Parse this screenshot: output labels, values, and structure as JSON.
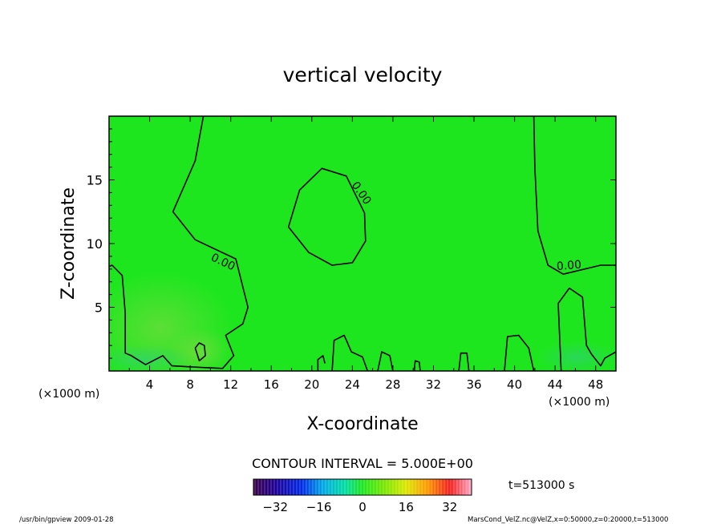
{
  "chart_data": {
    "type": "contour",
    "title": "vertical velocity",
    "xlabel": "X-coordinate",
    "ylabel": "Z-coordinate",
    "x_unit": "(×1000 m)",
    "y_unit": "(×1000 m)",
    "xlim": [
      0,
      50
    ],
    "ylim": [
      0,
      20
    ],
    "x_ticks": [
      4,
      8,
      12,
      16,
      20,
      24,
      28,
      32,
      36,
      40,
      44,
      48
    ],
    "y_ticks": [
      5,
      10,
      15
    ],
    "contour_interval_text": "CONTOUR INTERVAL = 5.000E+00",
    "contour_label": "0.00",
    "time_label": "t=513000 s",
    "colorbar": {
      "min": -40,
      "max": 40,
      "tick_values": [
        -32,
        -16,
        0,
        16,
        32
      ],
      "tick_labels": [
        "−32",
        "−16",
        "0",
        "16",
        "32"
      ]
    },
    "colors": {
      "field": "#1ee61e",
      "field_light": "#62d93c",
      "contour": "#000000"
    },
    "contours": [
      {
        "name": "left-contour",
        "points": [
          [
            9.3,
            20
          ],
          [
            8.5,
            16.5
          ],
          [
            6.3,
            12.5
          ],
          [
            8.5,
            10.3
          ],
          [
            12.5,
            8.8
          ],
          [
            13.7,
            5
          ],
          [
            13.2,
            3.7
          ],
          [
            11.5,
            2.8
          ],
          [
            12.3,
            1.2
          ],
          [
            11.2,
            0.2
          ],
          [
            8.5,
            0.3
          ],
          [
            6.2,
            0.4
          ],
          [
            5.3,
            1.2
          ],
          [
            3.6,
            0.5
          ],
          [
            2.2,
            1.2
          ],
          [
            1.6,
            1.4
          ],
          [
            1.6,
            4.5
          ],
          [
            1.3,
            7.5
          ],
          [
            0.3,
            8.3
          ],
          [
            0,
            8.2
          ]
        ]
      },
      {
        "name": "center-contour",
        "points": [
          [
            17.7,
            11.3
          ],
          [
            18.8,
            14.2
          ],
          [
            21,
            15.9
          ],
          [
            23.4,
            15.3
          ],
          [
            25.2,
            12.4
          ],
          [
            25.3,
            10.2
          ],
          [
            24.0,
            8.5
          ],
          [
            22,
            8.3
          ],
          [
            19.7,
            9.3
          ],
          [
            17.7,
            11.3
          ]
        ]
      },
      {
        "name": "right-contour",
        "points": [
          [
            41.9,
            20
          ],
          [
            42,
            16
          ],
          [
            42.3,
            11
          ],
          [
            43.3,
            8.3
          ],
          [
            44.8,
            7.6
          ],
          [
            48.5,
            8.3
          ],
          [
            50,
            8.3
          ]
        ]
      },
      {
        "name": "small-center-contour",
        "points": [
          [
            8.5,
            1.8
          ],
          [
            8.9,
            2.2
          ],
          [
            9.4,
            2.0
          ],
          [
            9.5,
            1.2
          ],
          [
            8.9,
            0.8
          ],
          [
            8.5,
            1.8
          ]
        ]
      },
      {
        "name": "bottom-bump-1",
        "points": [
          [
            22,
            0
          ],
          [
            22.2,
            2.4
          ],
          [
            23.2,
            2.8
          ],
          [
            23.9,
            1.5
          ],
          [
            25,
            1.1
          ],
          [
            25.5,
            0
          ]
        ]
      },
      {
        "name": "bottom-bump-2",
        "points": [
          [
            26.5,
            0
          ],
          [
            26.9,
            1.5
          ],
          [
            27.7,
            1.2
          ],
          [
            28,
            0
          ]
        ]
      },
      {
        "name": "bottom-bump-3",
        "points": [
          [
            39,
            0
          ],
          [
            39.3,
            2.7
          ],
          [
            40.4,
            2.8
          ],
          [
            41.4,
            1.8
          ],
          [
            41.9,
            0
          ]
        ]
      },
      {
        "name": "right-bump",
        "points": [
          [
            44.6,
            0
          ],
          [
            44.3,
            5.3
          ],
          [
            45.4,
            6.5
          ],
          [
            46.7,
            5.8
          ],
          [
            47.1,
            2
          ],
          [
            47.6,
            1.3
          ],
          [
            48.5,
            0.4
          ],
          [
            48.9,
            1.0
          ],
          [
            50,
            1.5
          ]
        ]
      },
      {
        "name": "bottom-bump-4",
        "points": [
          [
            30.1,
            0
          ],
          [
            30.2,
            0.8
          ],
          [
            30.6,
            0.7
          ],
          [
            30.7,
            0
          ]
        ]
      },
      {
        "name": "bottom-bump-5",
        "points": [
          [
            34.5,
            0
          ],
          [
            34.7,
            1.4
          ],
          [
            35.3,
            1.4
          ],
          [
            35.5,
            0
          ]
        ]
      },
      {
        "name": "bottom-bump-6",
        "points": [
          [
            20.6,
            0
          ],
          [
            20.6,
            0.9
          ],
          [
            21.1,
            1.2
          ],
          [
            21.3,
            0.6
          ]
        ]
      }
    ],
    "contour_labels_at": [
      {
        "x": 11.1,
        "y": 8.3,
        "angle": 25
      },
      {
        "x": 24.6,
        "y": 13.8,
        "angle": 55
      },
      {
        "x": 45.4,
        "y": 8.0,
        "angle": -5
      }
    ]
  },
  "footer": {
    "left": "/usr/bin/gpview   2009-01-28",
    "right": "MarsCond_VelZ.nc@VelZ,x=0:50000,z=0:20000,t=513000"
  }
}
